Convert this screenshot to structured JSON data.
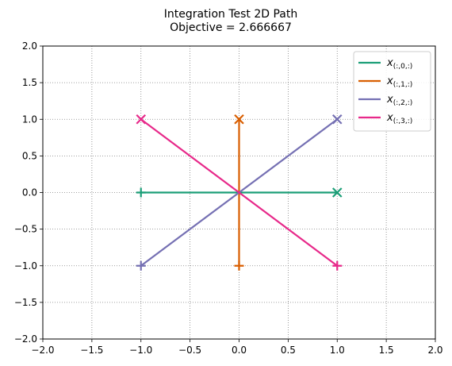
{
  "chart_data": {
    "type": "line",
    "title": "Integration Test  2D Path",
    "subtitle": "Objective = 2.666667",
    "xlabel": "",
    "ylabel": "",
    "xlim": [
      -2,
      2
    ],
    "ylim": [
      -2,
      2
    ],
    "x_ticks": [
      "−2.0",
      "−1.5",
      "−1.0",
      "−0.5",
      "0.0",
      "0.5",
      "1.0",
      "1.5",
      "2.0"
    ],
    "y_ticks": [
      "−2.0",
      "−1.5",
      "−1.0",
      "−0.5",
      "0.0",
      "0.5",
      "1.0",
      "1.5",
      "2.0"
    ],
    "grid": true,
    "legend_position": "top-right",
    "series": [
      {
        "name": "x(:,0,:)",
        "name_main": "x",
        "name_sub": "(:,0,:)",
        "color": "#1b9e77",
        "x": [
          -1,
          0,
          1
        ],
        "y": [
          0,
          0,
          0
        ]
      },
      {
        "name": "x(:,1,:)",
        "name_main": "x",
        "name_sub": "(:,1,:)",
        "color": "#d95f02",
        "x": [
          0,
          0,
          0
        ],
        "y": [
          -1,
          0,
          1
        ]
      },
      {
        "name": "x(:,2,:)",
        "name_main": "x",
        "name_sub": "(:,2,:)",
        "color": "#7570b3",
        "x": [
          -1,
          0,
          1
        ],
        "y": [
          -1,
          0,
          1
        ]
      },
      {
        "name": "x(:,3,:)",
        "name_main": "x",
        "name_sub": "(:,3,:)",
        "color": "#e7298a",
        "x": [
          1,
          0,
          -1
        ],
        "y": [
          -1,
          0,
          1
        ]
      }
    ],
    "start_marker": "+",
    "end_marker": "x"
  }
}
